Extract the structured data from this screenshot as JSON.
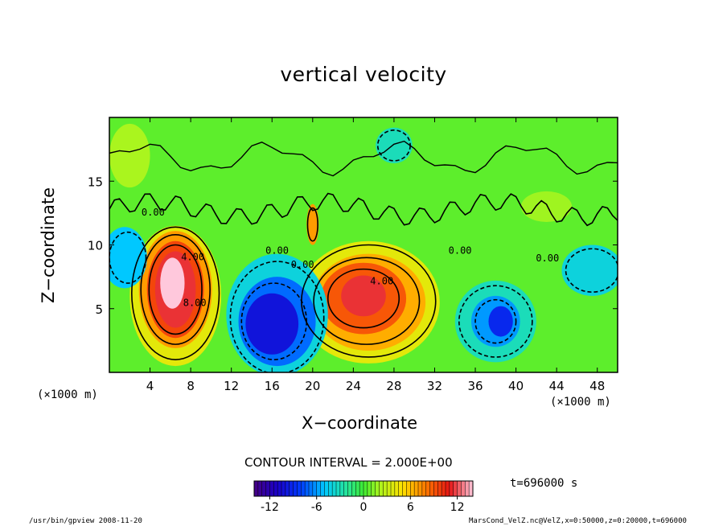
{
  "chart_data": {
    "type": "heatmap",
    "title": "vertical velocity",
    "xlabel": "X−coordinate",
    "ylabel": "Z−coordinate",
    "x_scale_label": "(×1000 m)",
    "z_scale_label": "(×1000 m)",
    "xlim": [
      0,
      50
    ],
    "ylim": [
      0,
      20
    ],
    "x_ticks": [
      4,
      8,
      12,
      16,
      20,
      24,
      28,
      32,
      36,
      40,
      44,
      48
    ],
    "y_ticks": [
      5,
      10,
      15
    ],
    "contour_interval": "CONTOUR INTERVAL = 2.000E+00",
    "contour_labels": [
      "4.00",
      "8.00",
      "4.00",
      "0.00",
      "0.00",
      "0.00",
      "0.00",
      "0.00"
    ],
    "colorbar": {
      "min": -14,
      "max": 14,
      "ticks": [
        -12,
        -6,
        0,
        6,
        12
      ]
    },
    "features": [
      {
        "x": 6.5,
        "z": 6.5,
        "value": 14
      },
      {
        "x": 25,
        "z": 6,
        "value": 11
      },
      {
        "x": 16,
        "z": 4,
        "value": -11
      },
      {
        "x": 38,
        "z": 4,
        "value": -9
      },
      {
        "x": 20,
        "z": 11.5,
        "value": 7
      },
      {
        "x": 2,
        "z": 9,
        "value": -5
      },
      {
        "x": 48,
        "z": 8,
        "value": -4
      },
      {
        "x": 28,
        "z": 17.5,
        "value": -3
      }
    ],
    "grid": false
  },
  "time_label": "t=696000 s",
  "footer": {
    "left": "/usr/bin/gpview  2008-11-20",
    "right": "MarsCond_VelZ.nc@VelZ,x=0:50000,z=0:20000,t=696000"
  }
}
